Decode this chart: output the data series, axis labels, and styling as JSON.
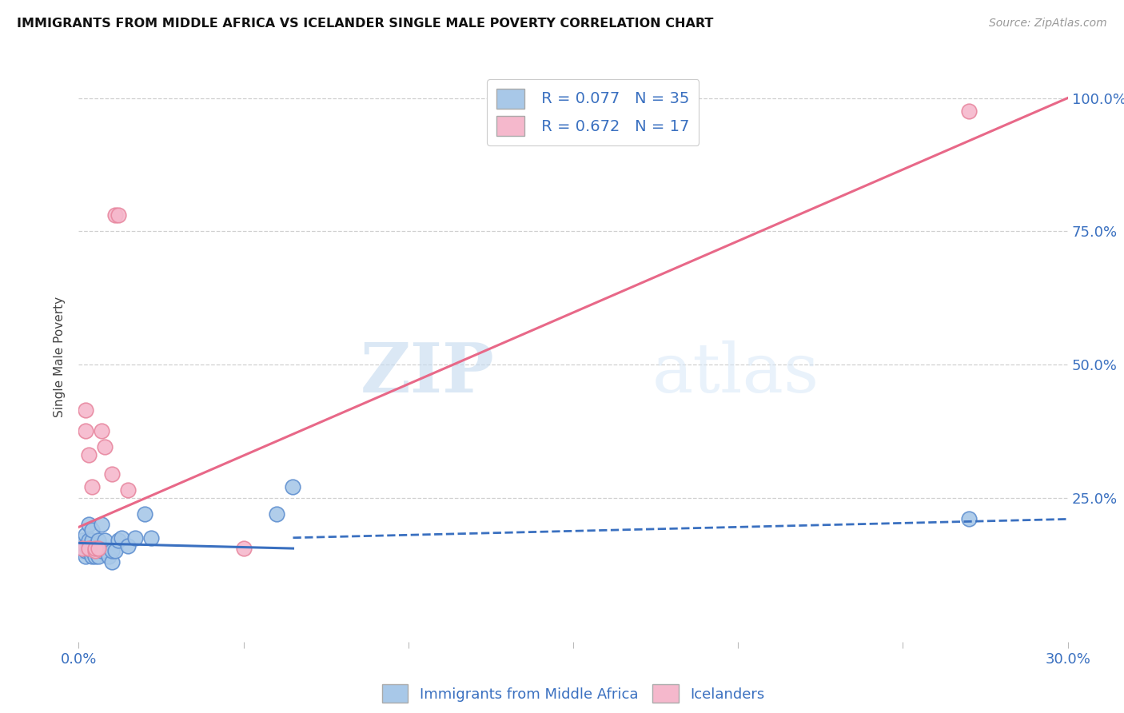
{
  "title": "IMMIGRANTS FROM MIDDLE AFRICA VS ICELANDER SINGLE MALE POVERTY CORRELATION CHART",
  "source": "Source: ZipAtlas.com",
  "xlabel_label": "Immigrants from Middle Africa",
  "legend_label2": "Icelanders",
  "ylabel_label": "Single Male Poverty",
  "r1": 0.077,
  "n1": 35,
  "r2": 0.672,
  "n2": 17,
  "xlim": [
    0.0,
    0.3
  ],
  "ylim": [
    -0.02,
    1.05
  ],
  "xticks": [
    0.0,
    0.05,
    0.1,
    0.15,
    0.2,
    0.25,
    0.3
  ],
  "xtick_labels": [
    "0.0%",
    "",
    "",
    "",
    "",
    "",
    "30.0%"
  ],
  "yticks": [
    0.0,
    0.25,
    0.5,
    0.75,
    1.0
  ],
  "ytick_labels": [
    "",
    "25.0%",
    "50.0%",
    "75.0%",
    "100.0%"
  ],
  "color_blue": "#a8c8e8",
  "color_pink": "#f5b8cc",
  "line_blue": "#3a70c0",
  "line_pink": "#e86888",
  "color_blue_edge": "#6090d0",
  "color_pink_edge": "#e888a0",
  "watermark_zip": "ZIP",
  "watermark_atlas": "atlas",
  "blue_scatter_x": [
    0.001,
    0.001,
    0.001,
    0.002,
    0.002,
    0.002,
    0.002,
    0.003,
    0.003,
    0.003,
    0.003,
    0.004,
    0.004,
    0.004,
    0.004,
    0.005,
    0.005,
    0.006,
    0.006,
    0.007,
    0.007,
    0.008,
    0.009,
    0.01,
    0.01,
    0.011,
    0.012,
    0.013,
    0.015,
    0.017,
    0.02,
    0.022,
    0.06,
    0.065,
    0.27
  ],
  "blue_scatter_y": [
    0.15,
    0.16,
    0.17,
    0.14,
    0.15,
    0.16,
    0.18,
    0.15,
    0.16,
    0.17,
    0.2,
    0.14,
    0.15,
    0.17,
    0.19,
    0.14,
    0.16,
    0.14,
    0.17,
    0.15,
    0.2,
    0.17,
    0.14,
    0.13,
    0.15,
    0.15,
    0.17,
    0.175,
    0.16,
    0.175,
    0.22,
    0.175,
    0.22,
    0.27,
    0.21
  ],
  "pink_scatter_x": [
    0.001,
    0.002,
    0.002,
    0.003,
    0.003,
    0.004,
    0.005,
    0.005,
    0.006,
    0.007,
    0.008,
    0.01,
    0.011,
    0.012,
    0.015,
    0.05,
    0.27
  ],
  "pink_scatter_y": [
    0.155,
    0.375,
    0.415,
    0.155,
    0.33,
    0.27,
    0.15,
    0.155,
    0.155,
    0.375,
    0.345,
    0.295,
    0.78,
    0.78,
    0.265,
    0.155,
    0.975
  ],
  "blue_line_x0": 0.0,
  "blue_line_x1": 0.065,
  "blue_line_y0": 0.165,
  "blue_line_y1": 0.155,
  "dashed_line_x0": 0.065,
  "dashed_line_x1": 0.3,
  "dashed_line_y0": 0.175,
  "dashed_line_y1": 0.21,
  "pink_line_x0": 0.0,
  "pink_line_x1": 0.3,
  "pink_line_y0": 0.195,
  "pink_line_y1": 1.0
}
